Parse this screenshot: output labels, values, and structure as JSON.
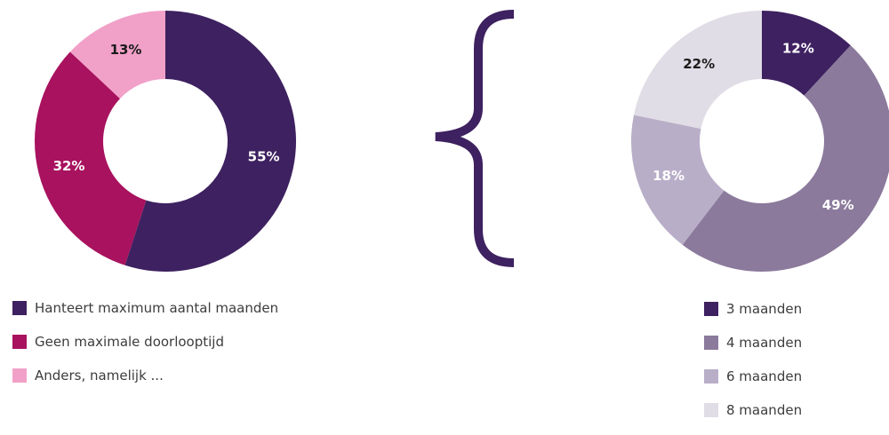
{
  "chart_data": [
    {
      "type": "pie",
      "variant": "donut",
      "slices": [
        {
          "label": "Hanteert maximum aantal maanden",
          "value": 55,
          "value_label": "55%",
          "color": "#3e2160",
          "text_color": "#ffffff"
        },
        {
          "label": "Geen maximale doorlooptijd",
          "value": 32,
          "value_label": "32%",
          "color": "#a8125f",
          "text_color": "#ffffff"
        },
        {
          "label": "Anders, namelijk ...",
          "value": 13,
          "value_label": "13%",
          "color": "#f1a1c8",
          "text_color": "#1a1a1a"
        }
      ]
    },
    {
      "type": "pie",
      "variant": "donut",
      "slices": [
        {
          "label": "3 maanden",
          "value": 12,
          "value_label": "12%",
          "color": "#3e2160",
          "text_color": "#ffffff"
        },
        {
          "label": "4 maanden",
          "value": 49,
          "value_label": "49%",
          "color": "#8b7a9c",
          "text_color": "#ffffff"
        },
        {
          "label": "6 maanden",
          "value": 18,
          "value_label": "18%",
          "color": "#b9aec8",
          "text_color": "#ffffff"
        },
        {
          "label": "8 maanden",
          "value": 22,
          "value_label": "22%",
          "color": "#e1dde6",
          "text_color": "#1a1a1a"
        }
      ]
    }
  ],
  "brace_color": "#3e2160"
}
